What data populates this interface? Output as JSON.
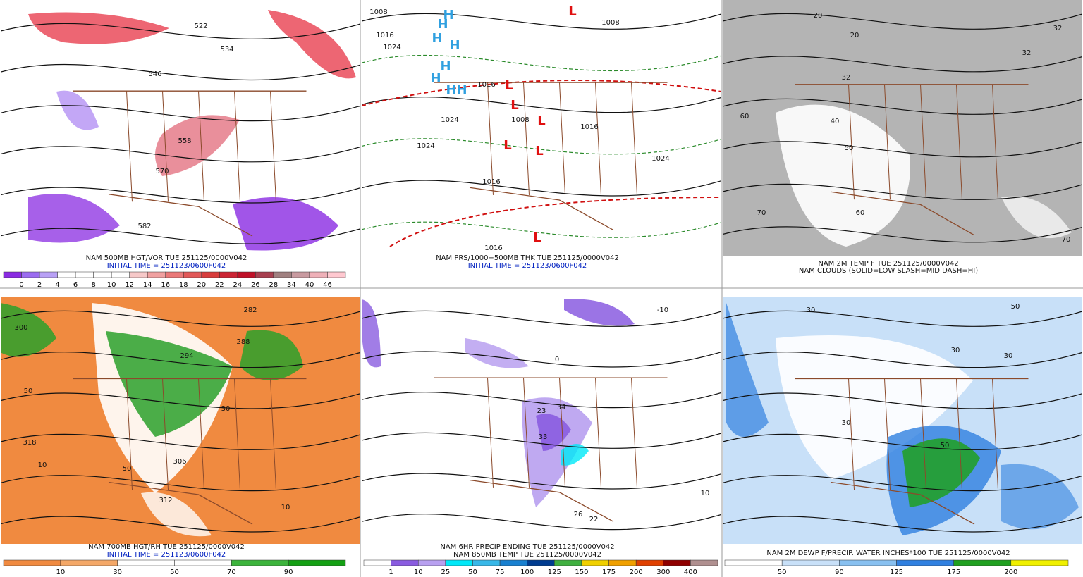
{
  "panels": [
    {
      "caption_lines": [
        "NAM 500MB HGT/VOR TUE 251125/0000V042",
        "INITIAL TIME = 251123/0600F042"
      ],
      "map_labels": [
        "522",
        "534",
        "546",
        "558",
        "570",
        "582"
      ],
      "colorbar": {
        "labels": [
          "0",
          "2",
          "4",
          "6",
          "8",
          "10",
          "12",
          "14",
          "16",
          "18",
          "20",
          "22",
          "24",
          "26",
          "28",
          "34",
          "40",
          "46"
        ],
        "colors": [
          "#8a2be2",
          "#9b6cf0",
          "#b8a0f5",
          "#ffffff",
          "#ffffff",
          "#ffffff",
          "#ffffff",
          "#f6c8c8",
          "#f0a0a0",
          "#ea7878",
          "#e25858",
          "#d83c3c",
          "#cc2434",
          "#c01028",
          "#a84050",
          "#a08080",
          "#c89aa0",
          "#eeb0b8",
          "#ffc8d0"
        ]
      }
    },
    {
      "caption_lines": [
        "NAM PRS/1000−500MB THK TUE 251125/0000V042",
        "INITIAL TIME = 251123/0600F042"
      ],
      "map_labels": [
        "1008",
        "1016",
        "1024",
        "1008",
        "1016",
        "1024",
        "1008",
        "1024",
        "1016",
        "1024",
        "1016",
        "1016",
        "H",
        "H",
        "H",
        "H",
        "H",
        "H",
        "H",
        "H",
        "L",
        "L",
        "L",
        "L",
        "L",
        "L",
        "L"
      ]
    },
    {
      "caption_lines": [
        "NAM 2M TEMP F TUE 251125/0000V042",
        "NAM CLOUDS (SOLID=LOW SLASH=MID DASH=HI)"
      ],
      "map_labels": [
        "20",
        "20",
        "32",
        "32",
        "40",
        "50",
        "60",
        "70",
        "60",
        "70",
        "32"
      ]
    },
    {
      "caption_lines": [
        "NAM 700MB HGT/RH TUE 251125/0000V042",
        "INITIAL TIME = 251123/0600F042"
      ],
      "map_labels": [
        "300",
        "318",
        "10",
        "50",
        "306",
        "312",
        "10",
        "50",
        "282",
        "288",
        "294",
        "30"
      ],
      "colorbar": {
        "labels": [
          "10",
          "30",
          "50",
          "70",
          "90"
        ],
        "colors": [
          "#f08a40",
          "#f4a868",
          "#ffffff",
          "#ffffff",
          "#3cb43c",
          "#14a014"
        ]
      }
    },
    {
      "caption_lines": [
        "NAM 6HR PRECIP ENDING TUE 251125/0000V042",
        "NAM 850MB TEMP TUE 251125/0000V042"
      ],
      "map_labels": [
        "26",
        "22",
        "23",
        "34",
        "33",
        "-10",
        "0",
        "10"
      ],
      "colorbar": {
        "labels": [
          "1",
          "10",
          "25",
          "50",
          "75",
          "100",
          "125",
          "150",
          "175",
          "200",
          "300",
          "400"
        ],
        "colors": [
          "#ffffff",
          "#8a5ce0",
          "#b8a0f0",
          "#00e8f8",
          "#38b8e8",
          "#1880d0",
          "#003c90",
          "#40b040",
          "#f0d000",
          "#f0a000",
          "#e04000",
          "#900000",
          "#b09090"
        ]
      }
    },
    {
      "caption_lines": [
        "NAM 2M DEWP F/PRECIP. WATER INCHES*100 TUE 251125/0000V042"
      ],
      "map_labels": [
        "30",
        "30",
        "50",
        "30",
        "30",
        "50"
      ],
      "colorbar": {
        "labels": [
          "50",
          "90",
          "125",
          "175",
          "200"
        ],
        "colors": [
          "#ffffff",
          "#c8e0f8",
          "#88c0f0",
          "#3080e0",
          "#20a020",
          "#f0f000"
        ]
      }
    }
  ]
}
